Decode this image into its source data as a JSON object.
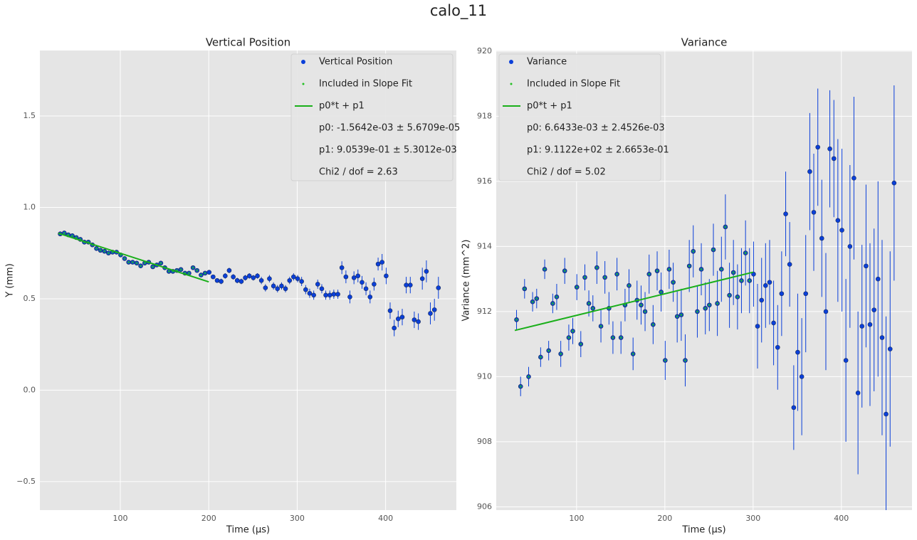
{
  "title": "calo_11",
  "chart_data": [
    {
      "type": "errorbar",
      "title": "Vertical Position",
      "xlabel": "Time (µs)",
      "ylabel": "Y (mm)",
      "xlim": [
        9,
        480
      ],
      "xticks": [
        100,
        200,
        300,
        400
      ],
      "ylim": [
        -0.656,
        1.858
      ],
      "yticks": [
        {
          "value": -0.5,
          "label": "−0.5"
        },
        {
          "value": 0,
          "label": "0.0"
        },
        0.5,
        {
          "value": 1,
          "label": "1.0"
        },
        1.5
      ],
      "grid": true,
      "legend": "upper right",
      "x": [
        32.0,
        36.6,
        41.1,
        45.7,
        50.2,
        54.8,
        59.3,
        63.9,
        68.4,
        73.0,
        77.5,
        82.1,
        86.6,
        91.2,
        95.7,
        100.3,
        104.8,
        109.4,
        113.9,
        118.5,
        123.0,
        127.6,
        132.1,
        136.7,
        141.2,
        145.8,
        150.3,
        154.9,
        159.4,
        164.0,
        168.5,
        173.1,
        177.6,
        182.2,
        186.7,
        191.3,
        195.8,
        200.4,
        204.9,
        209.5,
        214.0,
        218.6,
        223.1,
        227.7,
        232.2,
        236.8,
        241.3,
        245.9,
        250.4,
        255.0,
        259.5,
        264.1,
        268.6,
        273.2,
        277.7,
        282.3,
        286.8,
        291.4,
        295.9,
        300.5,
        305.0,
        309.6,
        314.1,
        318.7,
        323.2,
        327.8,
        332.3,
        336.9,
        341.4,
        346.0,
        350.5,
        355.1,
        359.6,
        364.2,
        368.7,
        373.3,
        377.8,
        382.4,
        386.9,
        391.5,
        396.0,
        400.6,
        405.1,
        409.7,
        414.2,
        418.8,
        423.3,
        427.9,
        432.4,
        437.0,
        441.5,
        446.1,
        450.6,
        455.2,
        459.7
      ],
      "series": [
        {
          "name": "Vertical Position",
          "color": "#0a3fd9",
          "values": [
            0.855,
            0.86,
            0.85,
            0.845,
            0.835,
            0.825,
            0.81,
            0.81,
            0.795,
            0.775,
            0.765,
            0.76,
            0.75,
            0.755,
            0.755,
            0.74,
            0.72,
            0.7,
            0.7,
            0.695,
            0.68,
            0.695,
            0.7,
            0.675,
            0.685,
            0.695,
            0.67,
            0.65,
            0.65,
            0.655,
            0.66,
            0.64,
            0.64,
            0.67,
            0.655,
            0.63,
            0.64,
            0.645,
            0.62,
            0.6,
            0.595,
            0.625,
            0.655,
            0.62,
            0.6,
            0.595,
            0.615,
            0.625,
            0.615,
            0.625,
            0.6,
            0.56,
            0.61,
            0.57,
            0.555,
            0.57,
            0.555,
            0.6,
            0.62,
            0.61,
            0.595,
            0.55,
            0.53,
            0.52,
            0.58,
            0.555,
            0.52,
            0.52,
            0.525,
            0.525,
            0.67,
            0.62,
            0.51,
            0.615,
            0.625,
            0.59,
            0.555,
            0.51,
            0.58,
            0.69,
            0.7,
            0.625,
            0.435,
            0.34,
            0.39,
            0.4,
            0.575,
            0.575,
            0.385,
            0.375,
            0.61,
            0.65,
            0.42,
            0.44,
            0.56
          ],
          "errors": [
            0.006,
            0.006,
            0.006,
            0.006,
            0.006,
            0.006,
            0.006,
            0.006,
            0.006,
            0.006,
            0.008,
            0.008,
            0.008,
            0.008,
            0.008,
            0.008,
            0.008,
            0.008,
            0.008,
            0.008,
            0.01,
            0.01,
            0.01,
            0.01,
            0.01,
            0.01,
            0.01,
            0.01,
            0.01,
            0.01,
            0.012,
            0.012,
            0.012,
            0.012,
            0.012,
            0.012,
            0.012,
            0.012,
            0.012,
            0.012,
            0.015,
            0.015,
            0.015,
            0.015,
            0.015,
            0.015,
            0.015,
            0.015,
            0.015,
            0.015,
            0.02,
            0.02,
            0.02,
            0.02,
            0.02,
            0.02,
            0.02,
            0.02,
            0.02,
            0.02,
            0.025,
            0.025,
            0.025,
            0.025,
            0.025,
            0.025,
            0.025,
            0.025,
            0.025,
            0.025,
            0.035,
            0.035,
            0.035,
            0.035,
            0.035,
            0.035,
            0.035,
            0.035,
            0.035,
            0.035,
            0.045,
            0.045,
            0.045,
            0.045,
            0.045,
            0.045,
            0.045,
            0.045,
            0.045,
            0.045,
            0.06,
            0.06,
            0.06,
            0.06,
            0.06
          ]
        },
        {
          "name": "Included in Slope Fit",
          "color": "#22c022"
        },
        {
          "name": "p0*t + p1",
          "color": "#1aaf1a",
          "x": [
            30,
            200
          ],
          "values": [
            0.8585,
            0.5925
          ]
        }
      ],
      "annotations": [
        "p0: -1.5642e-03 ± 5.6709e-05",
        "p1: 9.0539e-01 ± 5.3012e-03",
        "Chi2 / dof = 2.63"
      ]
    },
    {
      "type": "errorbar",
      "title": "Variance",
      "xlabel": "Time (µs)",
      "ylabel": "Variance (mm^2)",
      "xlim": [
        9,
        480
      ],
      "xticks": [
        100,
        200,
        300,
        400
      ],
      "ylim": [
        905.9,
        920.02
      ],
      "yticks": [
        906,
        908,
        910,
        912,
        914,
        916,
        918,
        920
      ],
      "grid": true,
      "legend": "upper left",
      "x": [
        32.0,
        36.6,
        41.1,
        45.7,
        50.2,
        54.8,
        59.3,
        63.9,
        68.4,
        73.0,
        77.5,
        82.1,
        86.6,
        91.2,
        95.7,
        100.3,
        104.8,
        109.4,
        113.9,
        118.5,
        123.0,
        127.6,
        132.1,
        136.7,
        141.2,
        145.8,
        150.3,
        154.9,
        159.4,
        164.0,
        168.5,
        173.1,
        177.6,
        182.2,
        186.7,
        191.3,
        195.8,
        200.4,
        204.9,
        209.5,
        214.0,
        218.6,
        223.1,
        227.7,
        232.2,
        236.8,
        241.3,
        245.9,
        250.4,
        255.0,
        259.5,
        264.1,
        268.6,
        273.2,
        277.7,
        282.3,
        286.8,
        291.4,
        295.9,
        300.5,
        305.0,
        309.6,
        314.1,
        318.7,
        323.2,
        327.8,
        332.3,
        336.9,
        341.4,
        346.0,
        350.5,
        355.1,
        359.6,
        364.2,
        368.7,
        373.3,
        377.8,
        382.4,
        386.9,
        391.5,
        396.0,
        400.6,
        405.1,
        409.7,
        414.2,
        418.8,
        423.3,
        427.9,
        432.4,
        437.0,
        441.5,
        446.1,
        450.6,
        455.2,
        459.7
      ],
      "series": [
        {
          "name": "Variance",
          "color": "#0a3fd9",
          "values": [
            911.75,
            909.7,
            912.7,
            910.0,
            912.3,
            912.4,
            910.6,
            913.3,
            910.8,
            912.25,
            912.45,
            910.7,
            913.25,
            911.2,
            911.4,
            912.75,
            911.0,
            913.05,
            912.25,
            912.1,
            913.35,
            911.55,
            913.05,
            912.1,
            911.2,
            913.15,
            911.2,
            912.2,
            912.8,
            910.7,
            912.35,
            912.2,
            912.0,
            913.15,
            911.6,
            913.25,
            912.6,
            910.5,
            913.3,
            912.9,
            911.85,
            911.9,
            910.5,
            913.4,
            913.85,
            912.0,
            913.3,
            912.1,
            912.2,
            913.9,
            912.25,
            913.3,
            914.6,
            912.5,
            913.2,
            912.45,
            912.95,
            913.8,
            912.95,
            913.15,
            911.55,
            912.35,
            912.8,
            912.9,
            911.65,
            910.9,
            912.55,
            915.0,
            913.45,
            909.05,
            910.75,
            910.0,
            912.55,
            916.3,
            915.05,
            917.05,
            914.25,
            912.0,
            917.0,
            916.7,
            914.8,
            914.5,
            910.5,
            914.0,
            916.1,
            909.5,
            911.55,
            913.4,
            911.6,
            912.05,
            913.0,
            911.2,
            908.85,
            910.85,
            915.95
          ],
          "errors": [
            0.3,
            0.3,
            0.3,
            0.3,
            0.3,
            0.3,
            0.3,
            0.3,
            0.3,
            0.3,
            0.4,
            0.4,
            0.4,
            0.4,
            0.4,
            0.4,
            0.4,
            0.4,
            0.4,
            0.4,
            0.5,
            0.5,
            0.5,
            0.5,
            0.5,
            0.5,
            0.5,
            0.5,
            0.5,
            0.5,
            0.6,
            0.6,
            0.6,
            0.6,
            0.6,
            0.6,
            0.6,
            0.6,
            0.6,
            0.6,
            0.8,
            0.8,
            0.8,
            0.8,
            0.8,
            0.8,
            0.8,
            0.8,
            0.8,
            0.8,
            1.0,
            1.0,
            1.0,
            1.0,
            1.0,
            1.0,
            1.0,
            1.0,
            1.0,
            1.0,
            1.3,
            1.3,
            1.3,
            1.3,
            1.3,
            1.3,
            1.3,
            1.3,
            1.3,
            1.3,
            1.8,
            1.8,
            1.8,
            1.8,
            1.8,
            1.8,
            1.8,
            1.8,
            1.8,
            1.8,
            2.5,
            2.5,
            2.5,
            2.5,
            2.5,
            2.5,
            2.5,
            2.5,
            2.5,
            2.5,
            3.0,
            3.0,
            3.0,
            3.0,
            3.0
          ]
        },
        {
          "name": "Included in Slope Fit",
          "color": "#22c022"
        },
        {
          "name": "p0*t + p1",
          "color": "#1aaf1a",
          "x": [
            30,
            300
          ],
          "values": [
            911.42,
            913.21
          ]
        }
      ],
      "annotations": [
        "p0: 6.6433e-03 ± 2.4526e-03",
        "p1: 9.1122e+02 ± 2.6653e-01",
        "Chi2 / dof = 5.02"
      ]
    }
  ]
}
